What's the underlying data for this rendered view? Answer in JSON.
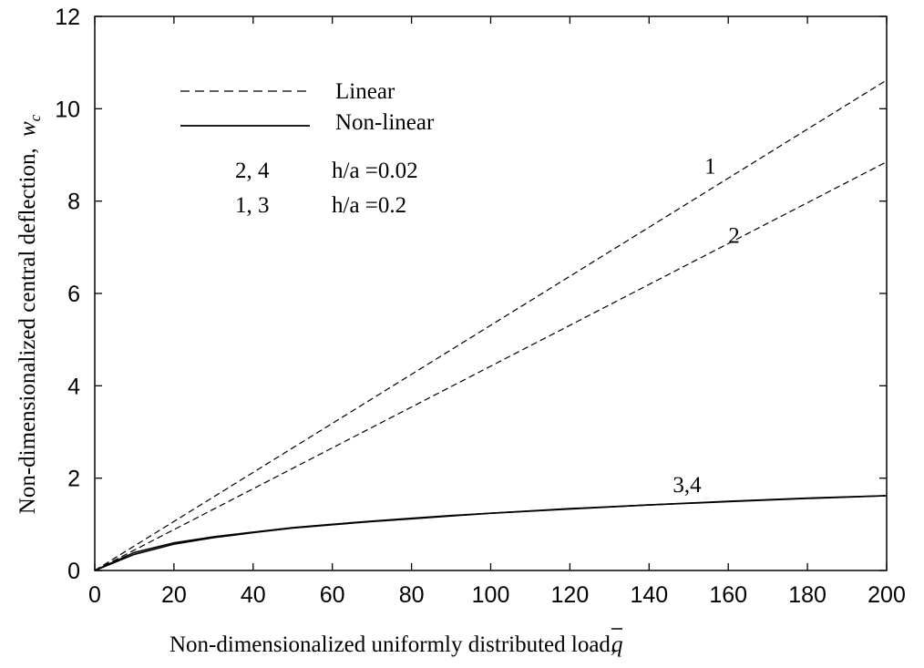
{
  "chart_data": {
    "type": "line",
    "xlabel": "Non-dimensionalized uniformly distributed load,",
    "xlabel_symbol": "q",
    "ylabel": "Non-dimensionalized central deflection,",
    "ylabel_symbol": "w",
    "ylabel_subscript": "c",
    "xlim": [
      0,
      200
    ],
    "ylim": [
      0,
      12
    ],
    "xticks": [
      0,
      20,
      40,
      60,
      80,
      100,
      120,
      140,
      160,
      180,
      200
    ],
    "yticks": [
      0,
      2,
      4,
      6,
      8,
      10,
      12
    ],
    "grid": false,
    "legend": {
      "placement": "top-left",
      "entries": [
        {
          "label": "Linear",
          "style": "dashed"
        },
        {
          "label": "Non-linear",
          "style": "solid"
        }
      ],
      "notes": [
        {
          "curves": "2, 4",
          "param": "h/a =0.02"
        },
        {
          "curves": "1, 3",
          "param": "h/a =0.2"
        }
      ]
    },
    "series": [
      {
        "id": "1",
        "style": "dashed",
        "x": [
          0,
          200
        ],
        "y": [
          0,
          10.62
        ]
      },
      {
        "id": "2",
        "style": "dashed",
        "x": [
          0,
          200
        ],
        "y": [
          0,
          8.85
        ]
      },
      {
        "id": "3",
        "style": "solid",
        "x": [
          0,
          10,
          20,
          30,
          40,
          50,
          60,
          70,
          80,
          90,
          100,
          120,
          140,
          160,
          180,
          200
        ],
        "y": [
          0,
          0.39,
          0.6,
          0.73,
          0.83,
          0.93,
          1.0,
          1.07,
          1.13,
          1.19,
          1.24,
          1.34,
          1.42,
          1.5,
          1.57,
          1.62
        ]
      },
      {
        "id": "4",
        "style": "solid",
        "x": [
          0,
          10,
          20,
          30,
          40,
          50,
          60,
          70,
          80,
          90,
          100,
          120,
          140,
          160,
          180,
          200
        ],
        "y": [
          0,
          0.35,
          0.57,
          0.71,
          0.82,
          0.92,
          0.99,
          1.06,
          1.12,
          1.18,
          1.24,
          1.33,
          1.42,
          1.49,
          1.56,
          1.62
        ]
      }
    ],
    "annotations": [
      {
        "text": "1",
        "x": 154,
        "y": 8.6
      },
      {
        "text": "2",
        "x": 160,
        "y": 7.1
      },
      {
        "text": "3,4",
        "x": 146,
        "y": 1.7
      }
    ]
  }
}
